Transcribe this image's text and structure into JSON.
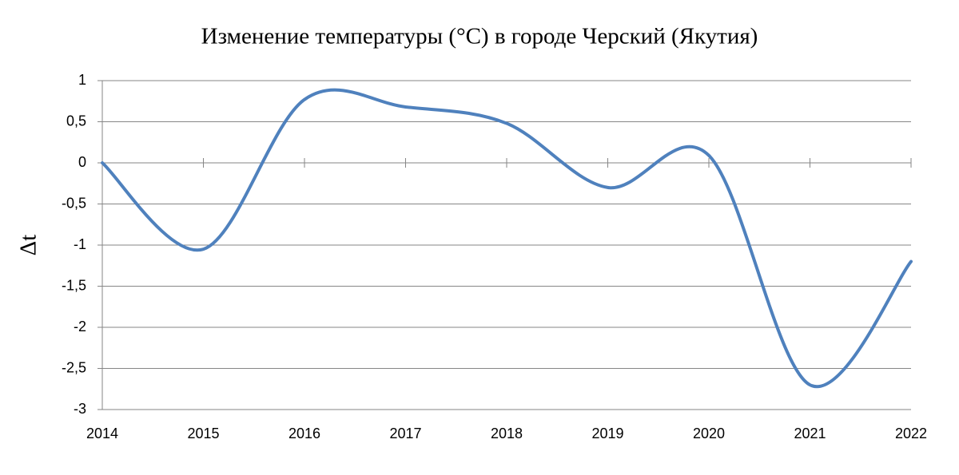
{
  "chart_data": {
    "type": "line",
    "title": "Изменение температуры (°С) в городе Черский (Якутия)",
    "y_label": "Δt",
    "categories": [
      "2014",
      "2015",
      "2016",
      "2017",
      "2018",
      "2019",
      "2020",
      "2021",
      "2022"
    ],
    "series": [
      {
        "name": "Δt",
        "color": "#4f81bd",
        "values": [
          0,
          -1.05,
          0.77,
          0.68,
          0.48,
          -0.3,
          0.09,
          -2.7,
          -1.2
        ]
      }
    ],
    "ylim": [
      -3,
      1
    ],
    "yticks": [
      -3,
      {
        "value": -2.5,
        "label": "-2,5"
      },
      -2,
      {
        "value": -1.5,
        "label": "-1,5"
      },
      -1,
      {
        "value": -0.5,
        "label": "-0,5"
      },
      0,
      {
        "value": 0.5,
        "label": "0,5"
      },
      1
    ],
    "grid": true,
    "smooth": true
  }
}
